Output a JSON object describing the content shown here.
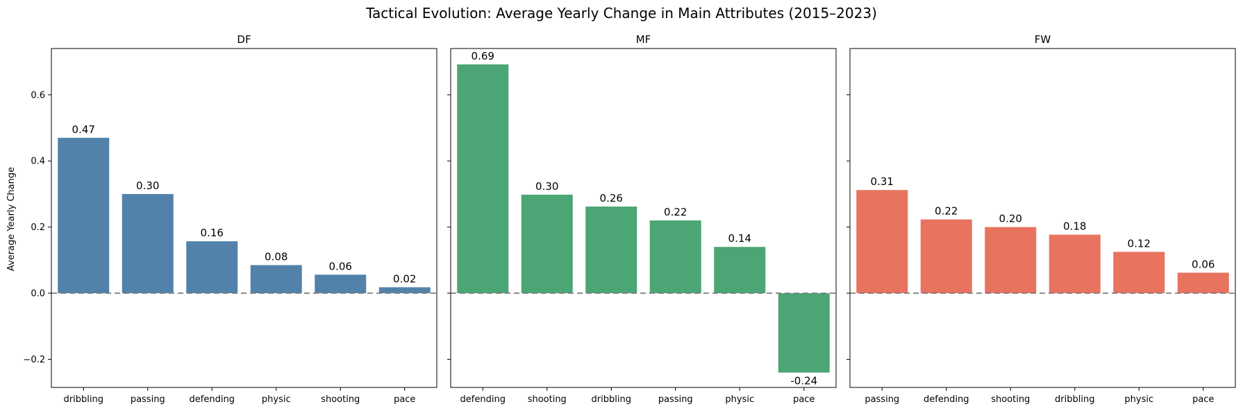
{
  "chart_data": {
    "type": "bar",
    "title": "Tactical Evolution: Average Yearly Change in Main Attributes (2015–2023)",
    "ylabel": "Average Yearly Change",
    "ylim": [
      -0.285,
      0.74
    ],
    "yticks": [
      -0.2,
      0.0,
      0.2,
      0.4,
      0.6
    ],
    "ytick_labels": [
      "−0.2",
      "0.0",
      "0.2",
      "0.4",
      "0.6"
    ],
    "zero_line": "dashed",
    "panels": [
      {
        "title": "DF",
        "color": "#5282a9",
        "categories": [
          "dribbling",
          "passing",
          "defending",
          "physic",
          "shooting",
          "pace"
        ],
        "values": [
          0.47,
          0.3,
          0.157,
          0.085,
          0.056,
          0.018
        ],
        "labels": [
          "0.47",
          "0.30",
          "0.16",
          "0.08",
          "0.06",
          "0.02"
        ]
      },
      {
        "title": "MF",
        "color": "#4ba574",
        "categories": [
          "defending",
          "shooting",
          "dribbling",
          "passing",
          "physic",
          "pace"
        ],
        "values": [
          0.692,
          0.298,
          0.262,
          0.22,
          0.14,
          -0.24
        ],
        "labels": [
          "0.69",
          "0.30",
          "0.26",
          "0.22",
          "0.14",
          "-0.24"
        ]
      },
      {
        "title": "FW",
        "color": "#e8735f",
        "categories": [
          "passing",
          "defending",
          "shooting",
          "dribbling",
          "physic",
          "pace"
        ],
        "values": [
          0.312,
          0.223,
          0.2,
          0.177,
          0.125,
          0.062
        ],
        "labels": [
          "0.31",
          "0.22",
          "0.20",
          "0.18",
          "0.12",
          "0.06"
        ]
      }
    ]
  }
}
